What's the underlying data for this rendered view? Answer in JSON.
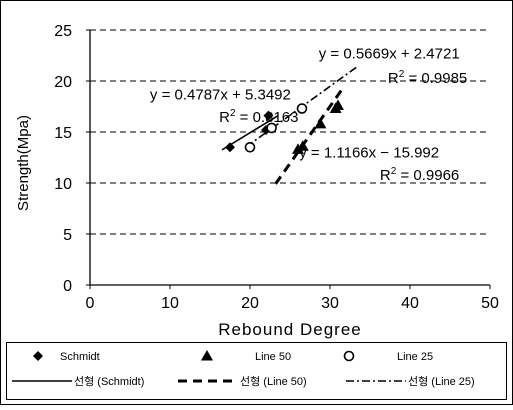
{
  "chart_data": {
    "type": "scatter",
    "title": "",
    "xlabel": "Rebound Degree",
    "ylabel": "Strength(Mpa)",
    "xlim": [
      0,
      50
    ],
    "ylim": [
      0,
      25
    ],
    "x_ticks": [
      "0",
      "10",
      "20",
      "30",
      "40",
      "50"
    ],
    "y_ticks": [
      "0",
      "5",
      "10",
      "15",
      "20",
      "25"
    ],
    "grid": "horizontal dashed",
    "series": [
      {
        "name": "Schmidt",
        "marker": "diamond",
        "points": [
          [
            17.5,
            13.5
          ],
          [
            22,
            15.2
          ],
          [
            22.3,
            16.6
          ]
        ]
      },
      {
        "name": "Line 50",
        "marker": "triangle",
        "points": [
          [
            26,
            13.3
          ],
          [
            26.6,
            13.6
          ],
          [
            28.8,
            15.8
          ],
          [
            30.7,
            17.3
          ],
          [
            31.0,
            17.6
          ]
        ]
      },
      {
        "name": "Line 25",
        "marker": "circle-open",
        "points": [
          [
            20,
            13.5
          ],
          [
            22.7,
            15.4
          ],
          [
            26.5,
            17.3
          ]
        ]
      }
    ],
    "trendlines": [
      {
        "name": "선형 (Schmidt)",
        "style": "solid",
        "x_range": [
          16.5,
          23.5
        ],
        "slope": 0.4787,
        "intercept": 5.3492,
        "equation": "y = 0.4787x + 5.3492",
        "r2_label": "R",
        "r2_sup": "2",
        "r2_value": " = 0.8163"
      },
      {
        "name": "선형 (Line 50)",
        "style": "dash",
        "x_range": [
          23.2,
          31.5
        ],
        "slope": 1.1166,
        "intercept": -15.992,
        "equation": "y = 1.1166x − 15.992",
        "r2_label": "R",
        "r2_sup": "2",
        "r2_value": " = 0.9966"
      },
      {
        "name": "선형 (Line 25)",
        "style": "dash-dot",
        "x_range": [
          19.5,
          33.5
        ],
        "slope": 0.5669,
        "intercept": 2.4721,
        "equation": "y = 0.5669x + 2.4721",
        "r2_label": "R",
        "r2_sup": "2",
        "r2_value": " = 0.9985"
      }
    ],
    "legend_placement": "bottom",
    "legend_entries": [
      "Schmidt",
      "Line 50",
      "Line 25",
      "선형 (Schmidt)",
      "선형 (Line 50)",
      "선형 (Line 25)"
    ]
  }
}
